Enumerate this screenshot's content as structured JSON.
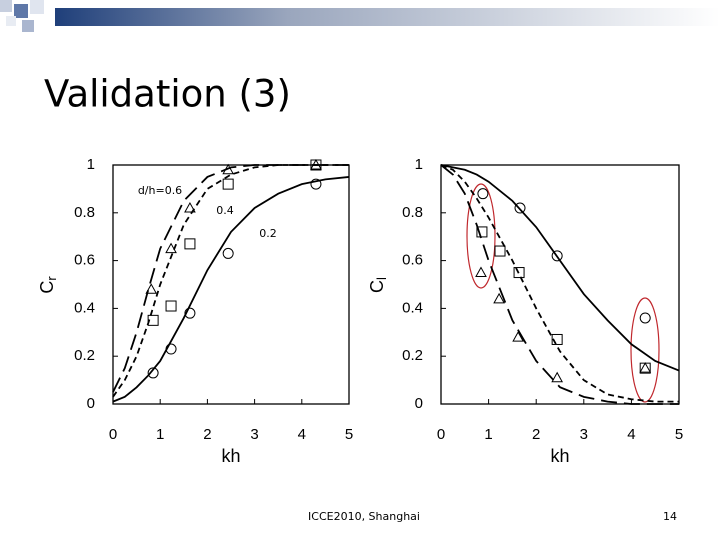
{
  "title": "Validation (3)",
  "footer": "ICCE2010, Shanghai",
  "page_number": "14",
  "chart_data": [
    {
      "type": "line",
      "xlabel": "kh",
      "ylabel": "C",
      "ylabel_sub": "r",
      "xlim": [
        0,
        5
      ],
      "xticks": [
        0,
        1,
        2,
        3,
        4,
        5
      ],
      "ylim": [
        0,
        1
      ],
      "yticks": [
        0,
        0.2,
        0.4,
        0.6,
        0.8,
        1
      ],
      "series": [
        {
          "name": "d/h=0.6",
          "type": "line",
          "style": "long-dash",
          "color": "#000000",
          "x": [
            0,
            0.25,
            0.5,
            0.75,
            1,
            1.5,
            2,
            2.5,
            3,
            3.5,
            4,
            4.5,
            5
          ],
          "values": [
            0.05,
            0.15,
            0.3,
            0.48,
            0.65,
            0.85,
            0.95,
            0.99,
            1,
            1,
            1,
            1,
            1
          ]
        },
        {
          "name": "0.4",
          "type": "line",
          "style": "short-dash",
          "color": "#000000",
          "x": [
            0,
            0.25,
            0.5,
            0.75,
            1,
            1.5,
            2,
            2.5,
            3,
            3.5,
            4,
            4.5,
            5
          ],
          "values": [
            0.03,
            0.1,
            0.2,
            0.34,
            0.5,
            0.75,
            0.9,
            0.96,
            0.99,
            1,
            1,
            1,
            1
          ]
        },
        {
          "name": "0.2",
          "type": "line",
          "style": "solid",
          "color": "#000000",
          "x": [
            0,
            0.25,
            0.5,
            0.75,
            1,
            1.5,
            2,
            2.5,
            3,
            3.5,
            4,
            4.5,
            5
          ],
          "values": [
            0.01,
            0.03,
            0.07,
            0.12,
            0.18,
            0.36,
            0.56,
            0.72,
            0.82,
            0.88,
            0.92,
            0.94,
            0.95
          ]
        },
        {
          "type": "scatter",
          "marker": "triangle",
          "color": "#000000",
          "x": [
            0.81,
            1.23,
            1.63,
            2.44,
            4.3
          ],
          "values": [
            0.48,
            0.65,
            0.82,
            0.98,
            1.0
          ]
        },
        {
          "type": "scatter",
          "marker": "square",
          "color": "#000000",
          "x": [
            0.85,
            1.23,
            1.63,
            2.44,
            4.3
          ],
          "values": [
            0.35,
            0.41,
            0.67,
            0.92,
            1.0
          ]
        },
        {
          "type": "scatter",
          "marker": "circle",
          "color": "#000000",
          "x": [
            0.85,
            1.23,
            1.63,
            2.44,
            4.3
          ],
          "values": [
            0.13,
            0.23,
            0.38,
            0.63,
            0.92
          ]
        }
      ]
    },
    {
      "type": "line",
      "xlabel": "kh",
      "ylabel": "C",
      "ylabel_sub": "l",
      "xlim": [
        0,
        5
      ],
      "xticks": [
        0,
        1,
        2,
        3,
        4,
        5
      ],
      "ylim": [
        0,
        1
      ],
      "yticks": [
        0,
        0.2,
        0.4,
        0.6,
        0.8,
        1
      ],
      "series": [
        {
          "type": "line",
          "style": "long-dash",
          "color": "#000000",
          "x": [
            0,
            0.25,
            0.5,
            0.75,
            1,
            1.5,
            2,
            2.5,
            3,
            3.5,
            4,
            4.5,
            5
          ],
          "values": [
            1,
            0.96,
            0.88,
            0.75,
            0.6,
            0.35,
            0.18,
            0.07,
            0.03,
            0.01,
            0,
            0,
            0
          ]
        },
        {
          "type": "line",
          "style": "short-dash",
          "color": "#000000",
          "x": [
            0,
            0.25,
            0.5,
            0.75,
            1,
            1.5,
            2,
            2.5,
            3,
            3.5,
            4,
            4.5,
            5
          ],
          "values": [
            1,
            0.98,
            0.93,
            0.86,
            0.78,
            0.6,
            0.4,
            0.22,
            0.1,
            0.04,
            0.02,
            0.01,
            0.01
          ]
        },
        {
          "type": "line",
          "style": "solid",
          "color": "#000000",
          "x": [
            0,
            0.25,
            0.5,
            0.75,
            1,
            1.5,
            2,
            2.5,
            3,
            3.5,
            4,
            4.5,
            5
          ],
          "values": [
            1,
            0.99,
            0.98,
            0.96,
            0.93,
            0.85,
            0.74,
            0.6,
            0.46,
            0.35,
            0.25,
            0.18,
            0.14
          ]
        },
        {
          "type": "scatter",
          "marker": "circle",
          "color": "#000000",
          "x": [
            0.88,
            1.66,
            2.44,
            4.29
          ],
          "values": [
            0.88,
            0.82,
            0.62,
            0.36
          ]
        },
        {
          "type": "scatter",
          "marker": "square",
          "color": "#000000",
          "x": [
            0.86,
            1.24,
            1.64,
            2.44,
            4.29
          ],
          "values": [
            0.72,
            0.64,
            0.55,
            0.27,
            0.15
          ]
        },
        {
          "type": "scatter",
          "marker": "triangle",
          "color": "#000000",
          "x": [
            0.84,
            1.22,
            1.62,
            2.44,
            4.29
          ],
          "values": [
            0.55,
            0.44,
            0.28,
            0.11,
            0.15
          ]
        }
      ]
    }
  ]
}
